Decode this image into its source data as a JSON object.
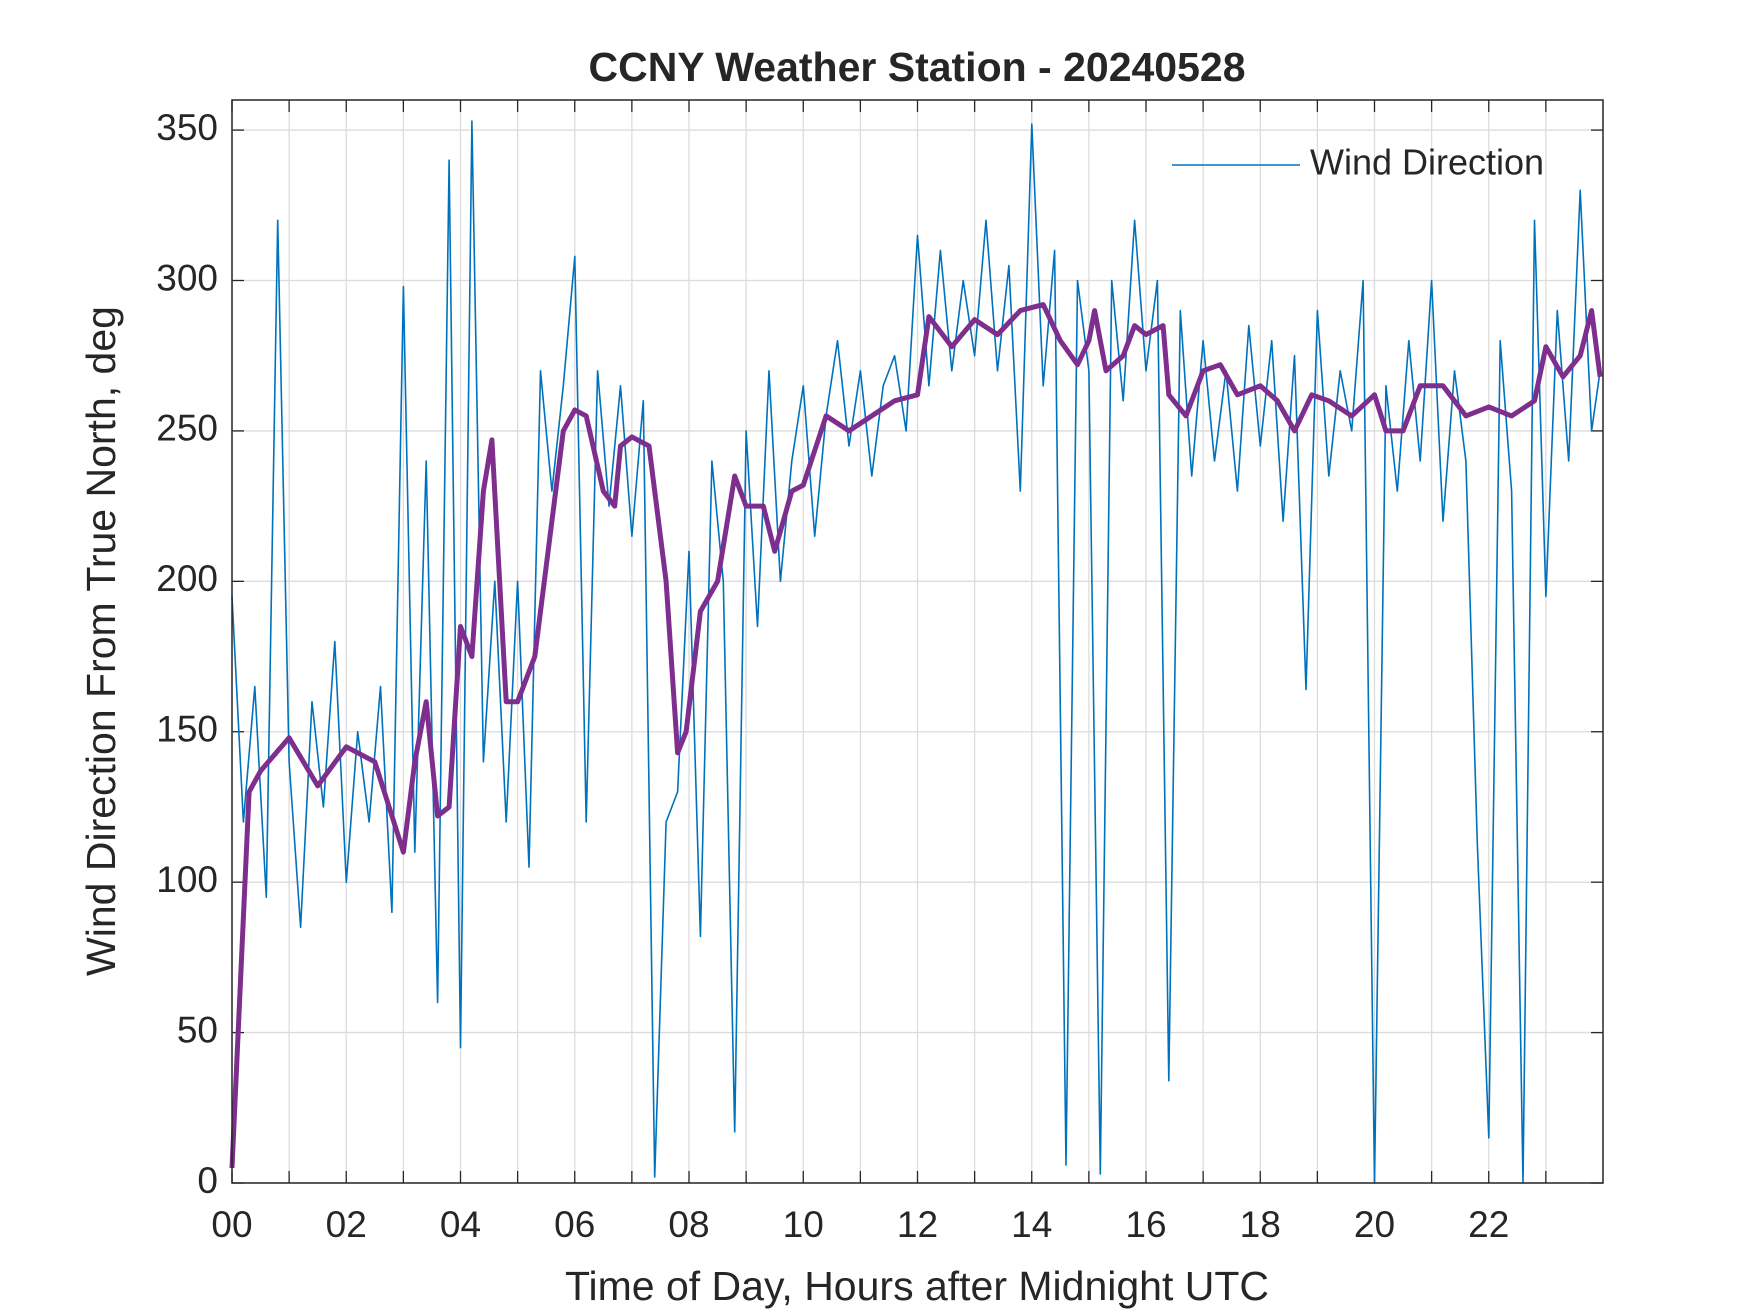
{
  "chart_data": {
    "type": "line",
    "title": "CCNY Weather Station - 20240528",
    "xlabel": "Time of Day, Hours after Midnight UTC",
    "ylabel": "Wind Direction From True North, deg",
    "xlim": [
      0,
      24
    ],
    "ylim": [
      0,
      360
    ],
    "xticks": [
      {
        "value": 0,
        "label": "00"
      },
      {
        "value": 2,
        "label": "02"
      },
      {
        "value": 4,
        "label": "04"
      },
      {
        "value": 6,
        "label": "06"
      },
      {
        "value": 8,
        "label": "08"
      },
      {
        "value": 10,
        "label": "10"
      },
      {
        "value": 12,
        "label": "12"
      },
      {
        "value": 14,
        "label": "14"
      },
      {
        "value": 16,
        "label": "16"
      },
      {
        "value": 18,
        "label": "18"
      },
      {
        "value": 20,
        "label": "20"
      },
      {
        "value": 22,
        "label": "22"
      }
    ],
    "xminor_ticks": [
      1,
      3,
      5,
      7,
      9,
      11,
      13,
      15,
      17,
      19,
      21,
      23
    ],
    "yticks": [
      0,
      50,
      100,
      150,
      200,
      250,
      300,
      350
    ],
    "grid": true,
    "legend": "upper right",
    "series": [
      {
        "name": "Wind Direction",
        "color": "#0072BD",
        "width": 1.6,
        "x": [
          0,
          0.2,
          0.4,
          0.6,
          0.8,
          1,
          1.2,
          1.4,
          1.6,
          1.8,
          2,
          2.2,
          2.4,
          2.6,
          2.8,
          3,
          3.2,
          3.4,
          3.6,
          3.8,
          4,
          4.2,
          4.4,
          4.6,
          4.8,
          5,
          5.2,
          5.4,
          5.6,
          5.8,
          6,
          6.2,
          6.4,
          6.6,
          6.8,
          7,
          7.2,
          7.4,
          7.6,
          7.8,
          8,
          8.2,
          8.4,
          8.6,
          8.8,
          9,
          9.2,
          9.4,
          9.6,
          9.8,
          10,
          10.2,
          10.4,
          10.6,
          10.8,
          11,
          11.2,
          11.4,
          11.6,
          11.8,
          12,
          12.2,
          12.4,
          12.6,
          12.8,
          13,
          13.2,
          13.4,
          13.6,
          13.8,
          14,
          14.2,
          14.4,
          14.6,
          14.8,
          15,
          15.2,
          15.4,
          15.6,
          15.8,
          16,
          16.2,
          16.4,
          16.6,
          16.8,
          17,
          17.2,
          17.4,
          17.6,
          17.8,
          18,
          18.2,
          18.4,
          18.6,
          18.8,
          19,
          19.2,
          19.4,
          19.6,
          19.8,
          20,
          20.2,
          20.4,
          20.6,
          20.8,
          21,
          21.2,
          21.4,
          21.6,
          21.8,
          22,
          22.2,
          22.4,
          22.6,
          22.8,
          23,
          23.2,
          23.4,
          23.6,
          23.8,
          23.95
        ],
        "values": [
          195,
          120,
          165,
          95,
          320,
          140,
          85,
          160,
          125,
          180,
          100,
          150,
          120,
          165,
          90,
          298,
          110,
          240,
          60,
          340,
          45,
          353,
          140,
          200,
          120,
          200,
          105,
          270,
          230,
          265,
          308,
          120,
          270,
          225,
          265,
          215,
          260,
          2,
          120,
          130,
          210,
          82,
          240,
          200,
          17,
          250,
          185,
          270,
          200,
          240,
          265,
          215,
          255,
          280,
          245,
          270,
          235,
          265,
          275,
          250,
          315,
          265,
          310,
          270,
          300,
          275,
          320,
          270,
          305,
          230,
          352,
          265,
          310,
          6,
          300,
          270,
          3,
          300,
          260,
          320,
          270,
          300,
          34,
          290,
          235,
          280,
          240,
          270,
          230,
          285,
          245,
          280,
          220,
          275,
          164,
          290,
          235,
          270,
          250,
          300,
          0,
          265,
          230,
          280,
          240,
          300,
          220,
          270,
          240,
          113,
          15,
          280,
          230,
          0,
          320,
          195,
          290,
          240,
          330,
          250,
          270
        ]
      },
      {
        "color": "#7E2F8E",
        "width": 5,
        "x": [
          0,
          0.3,
          0.5,
          1,
          1.5,
          2,
          2.5,
          3,
          3.2,
          3.4,
          3.6,
          3.8,
          4,
          4.2,
          4.4,
          4.55,
          4.8,
          5,
          5.3,
          5.6,
          5.8,
          6,
          6.2,
          6.5,
          6.7,
          6.8,
          7,
          7.3,
          7.6,
          7.8,
          7.95,
          8.2,
          8.5,
          8.8,
          9,
          9.3,
          9.5,
          9.8,
          10,
          10.4,
          10.8,
          11.2,
          11.6,
          12,
          12.2,
          12.6,
          13,
          13.4,
          13.8,
          14.2,
          14.5,
          14.8,
          15,
          15.1,
          15.3,
          15.6,
          15.8,
          16,
          16.3,
          16.4,
          16.7,
          17,
          17.3,
          17.6,
          18,
          18.3,
          18.6,
          18.9,
          19.2,
          19.6,
          20,
          20.2,
          20.5,
          20.8,
          21.2,
          21.6,
          22,
          22.4,
          22.8,
          23,
          23.3,
          23.6,
          23.8,
          23.95
        ],
        "values": [
          5,
          130,
          137,
          148,
          132,
          145,
          140,
          110,
          140,
          160,
          122,
          125,
          185,
          175,
          230,
          247,
          160,
          160,
          175,
          220,
          250,
          257,
          255,
          230,
          225,
          245,
          248,
          245,
          200,
          143,
          150,
          190,
          200,
          235,
          225,
          225,
          210,
          230,
          232,
          255,
          250,
          255,
          260,
          262,
          288,
          278,
          287,
          282,
          290,
          292,
          280,
          272,
          280,
          290,
          270,
          275,
          285,
          282,
          285,
          262,
          255,
          270,
          272,
          262,
          265,
          260,
          250,
          262,
          260,
          255,
          262,
          250,
          250,
          265,
          265,
          255,
          258,
          255,
          260,
          278,
          268,
          275,
          290,
          268
        ]
      }
    ]
  }
}
